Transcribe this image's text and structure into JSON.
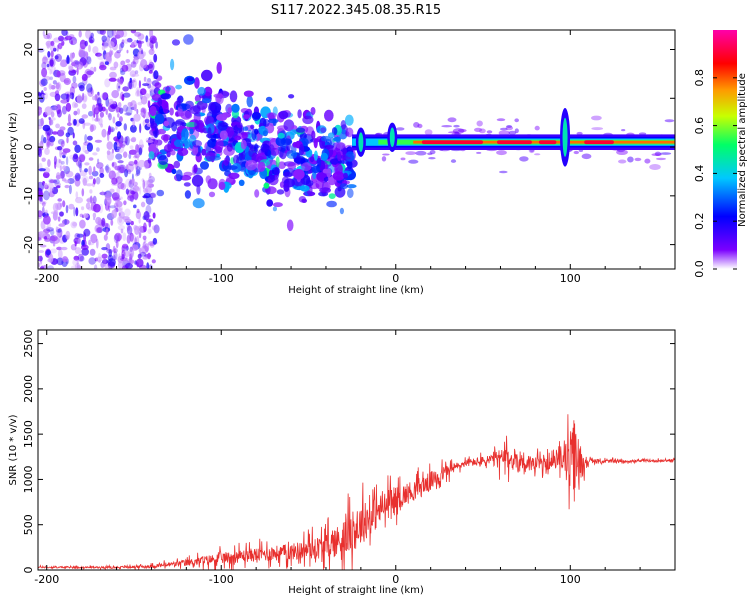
{
  "figure_title": "S117.2022.345.08.35.R15",
  "chart_data": [
    {
      "type": "heatmap",
      "title": "S117.2022.345.08.35.R15",
      "xlabel": "Height of straight line (km)",
      "ylabel": "Frequency (Hz)",
      "xlim": [
        -205,
        160
      ],
      "ylim": [
        -25,
        24
      ],
      "xticks": [
        -200,
        -100,
        0,
        100
      ],
      "yticks": [
        -20,
        -10,
        0,
        10,
        20
      ],
      "colorbar": {
        "label": "Normalized spectral amplitude",
        "range": [
          0.0,
          1.0
        ],
        "ticks": [
          0.0,
          0.2,
          0.4,
          0.6,
          0.8
        ],
        "tick_labels": [
          "0.0",
          "0.2",
          "0.4",
          "0.6",
          "0.8"
        ],
        "colormap": [
          "#ffffff",
          "#7b00ff",
          "#0000ff",
          "#00c8ff",
          "#00ff66",
          "#c8ff00",
          "#ff9900",
          "#ff0000",
          "#ff00aa"
        ]
      },
      "features": [
        {
          "segment": "diffuse noise",
          "x_range": [
            -205,
            -140
          ],
          "freq_range": [
            -25,
            24
          ],
          "amplitude": 0.1
        },
        {
          "segment": "scattered blobs",
          "x_range": [
            -140,
            -25
          ],
          "freq_center": [
            5,
            -8
          ],
          "amplitude": 0.25
        },
        {
          "segment": "stable carrier",
          "x_range": [
            -25,
            160
          ],
          "freq_center": 1,
          "amplitude": 0.9
        }
      ]
    },
    {
      "type": "line",
      "title": "",
      "xlabel": "Height of straight line (km)",
      "ylabel": "SNR (10 * v/v)",
      "xlim": [
        -205,
        160
      ],
      "ylim": [
        0,
        2650
      ],
      "xticks": [
        -200,
        -100,
        0,
        100
      ],
      "yticks": [
        0,
        500,
        1000,
        1500,
        2000,
        2500
      ],
      "series": [
        {
          "color": "#e8302e",
          "envelope": {
            "x": [
              -205,
              -160,
              -140,
              -120,
              -100,
              -80,
              -60,
              -40,
              -30,
              -20,
              -10,
              0,
              10,
              20,
              30,
              40,
              50,
              60,
              70,
              80,
              90,
              95,
              100,
              102,
              105,
              110,
              130,
              160
            ],
            "mid": [
              30,
              30,
              40,
              80,
              130,
              170,
              200,
              260,
              350,
              500,
              650,
              780,
              880,
              980,
              1100,
              1180,
              1200,
              1230,
              1210,
              1170,
              1180,
              1250,
              1200,
              1200,
              1180,
              1200,
              1200,
              1210
            ],
            "amp": [
              20,
              20,
              40,
              80,
              140,
              170,
              200,
              300,
              450,
              500,
              400,
              300,
              250,
              230,
              150,
              80,
              120,
              250,
              300,
              180,
              150,
              250,
              700,
              1100,
              600,
              60,
              30,
              30
            ]
          }
        }
      ]
    }
  ]
}
